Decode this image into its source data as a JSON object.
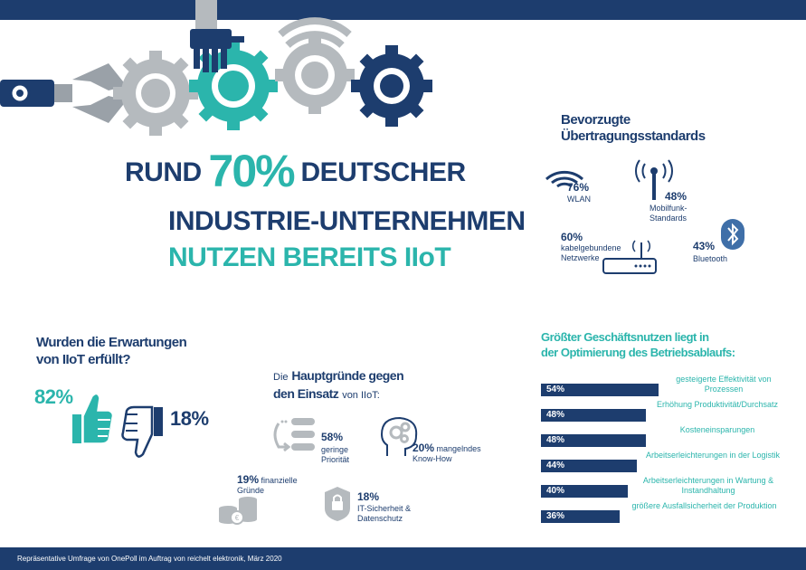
{
  "headline": {
    "line1_pre": "RUND",
    "line1_big": "70%",
    "line1_post": "DEUTSCHER",
    "line2": "INDUSTRIE-UNTERNEHMEN",
    "line3": "NUTZEN BEREITS IIoT"
  },
  "standards": {
    "title": "Bevorzugte Übertragungsstandards",
    "items": [
      {
        "pct": "76%",
        "label": "WLAN",
        "icon": "wifi-icon"
      },
      {
        "pct": "48%",
        "label": "Mobilfunk-Standards",
        "icon": "cell-tower-icon"
      },
      {
        "pct": "60%",
        "label": "kabelgebundene Netzwerke",
        "icon": "router-icon"
      },
      {
        "pct": "43%",
        "label": "Bluetooth",
        "icon": "bluetooth-icon"
      }
    ]
  },
  "expectations": {
    "title_line1": "Wurden die Erwartungen",
    "title_line2": "von IIoT erfüllt?",
    "yes_pct": "82%",
    "no_pct": "18%",
    "colors": {
      "yes": "#2bb5ac",
      "no": "#1d3d6e"
    }
  },
  "reasons": {
    "title_pre": "Die",
    "title_bold1": "Hauptgründe gegen",
    "title_bold2": "den Einsatz",
    "title_post": "von IIoT:",
    "items": [
      {
        "pct": "58%",
        "label": "geringe Priorität",
        "icon": "priority-list-icon"
      },
      {
        "pct": "20%",
        "label": "mangelndes Know-How",
        "icon": "head-gears-icon"
      },
      {
        "pct": "19%",
        "label": "finanzielle Gründe",
        "icon": "coins-icon"
      },
      {
        "pct": "18%",
        "label": "IT-Sicherheit & Datenschutz",
        "icon": "lock-icon"
      }
    ]
  },
  "benefits": {
    "title_line1": "Größter Geschäftsnutzen liegt in",
    "title_line2": "der Optimierung des Betriebsablaufs:",
    "bar_color": "#1d3d6e",
    "label_color": "#2bb5ac"
  },
  "chart_data": {
    "type": "bar",
    "orientation": "horizontal",
    "title": "Größter Geschäftsnutzen liegt in der Optimierung des Betriebsablaufs:",
    "categories": [
      "gesteigerte Effektivität von Prozessen",
      "Erhöhung Produktivität/Durchsatz",
      "Kosteneinsparungen",
      "Arbeitserleichterungen in der Logistik",
      "Arbeitserleichterungen in Wartung & Instandhaltung",
      "größere Ausfallsicherheit der Produktion"
    ],
    "values": [
      54,
      48,
      48,
      44,
      40,
      36
    ],
    "value_labels": [
      "54%",
      "48%",
      "48%",
      "44%",
      "40%",
      "36%"
    ],
    "xlim": [
      0,
      100
    ]
  },
  "footer": {
    "text": "Repräsentative Umfrage von OnePoll im Auftrag von reichelt elektronik, März 2020"
  }
}
